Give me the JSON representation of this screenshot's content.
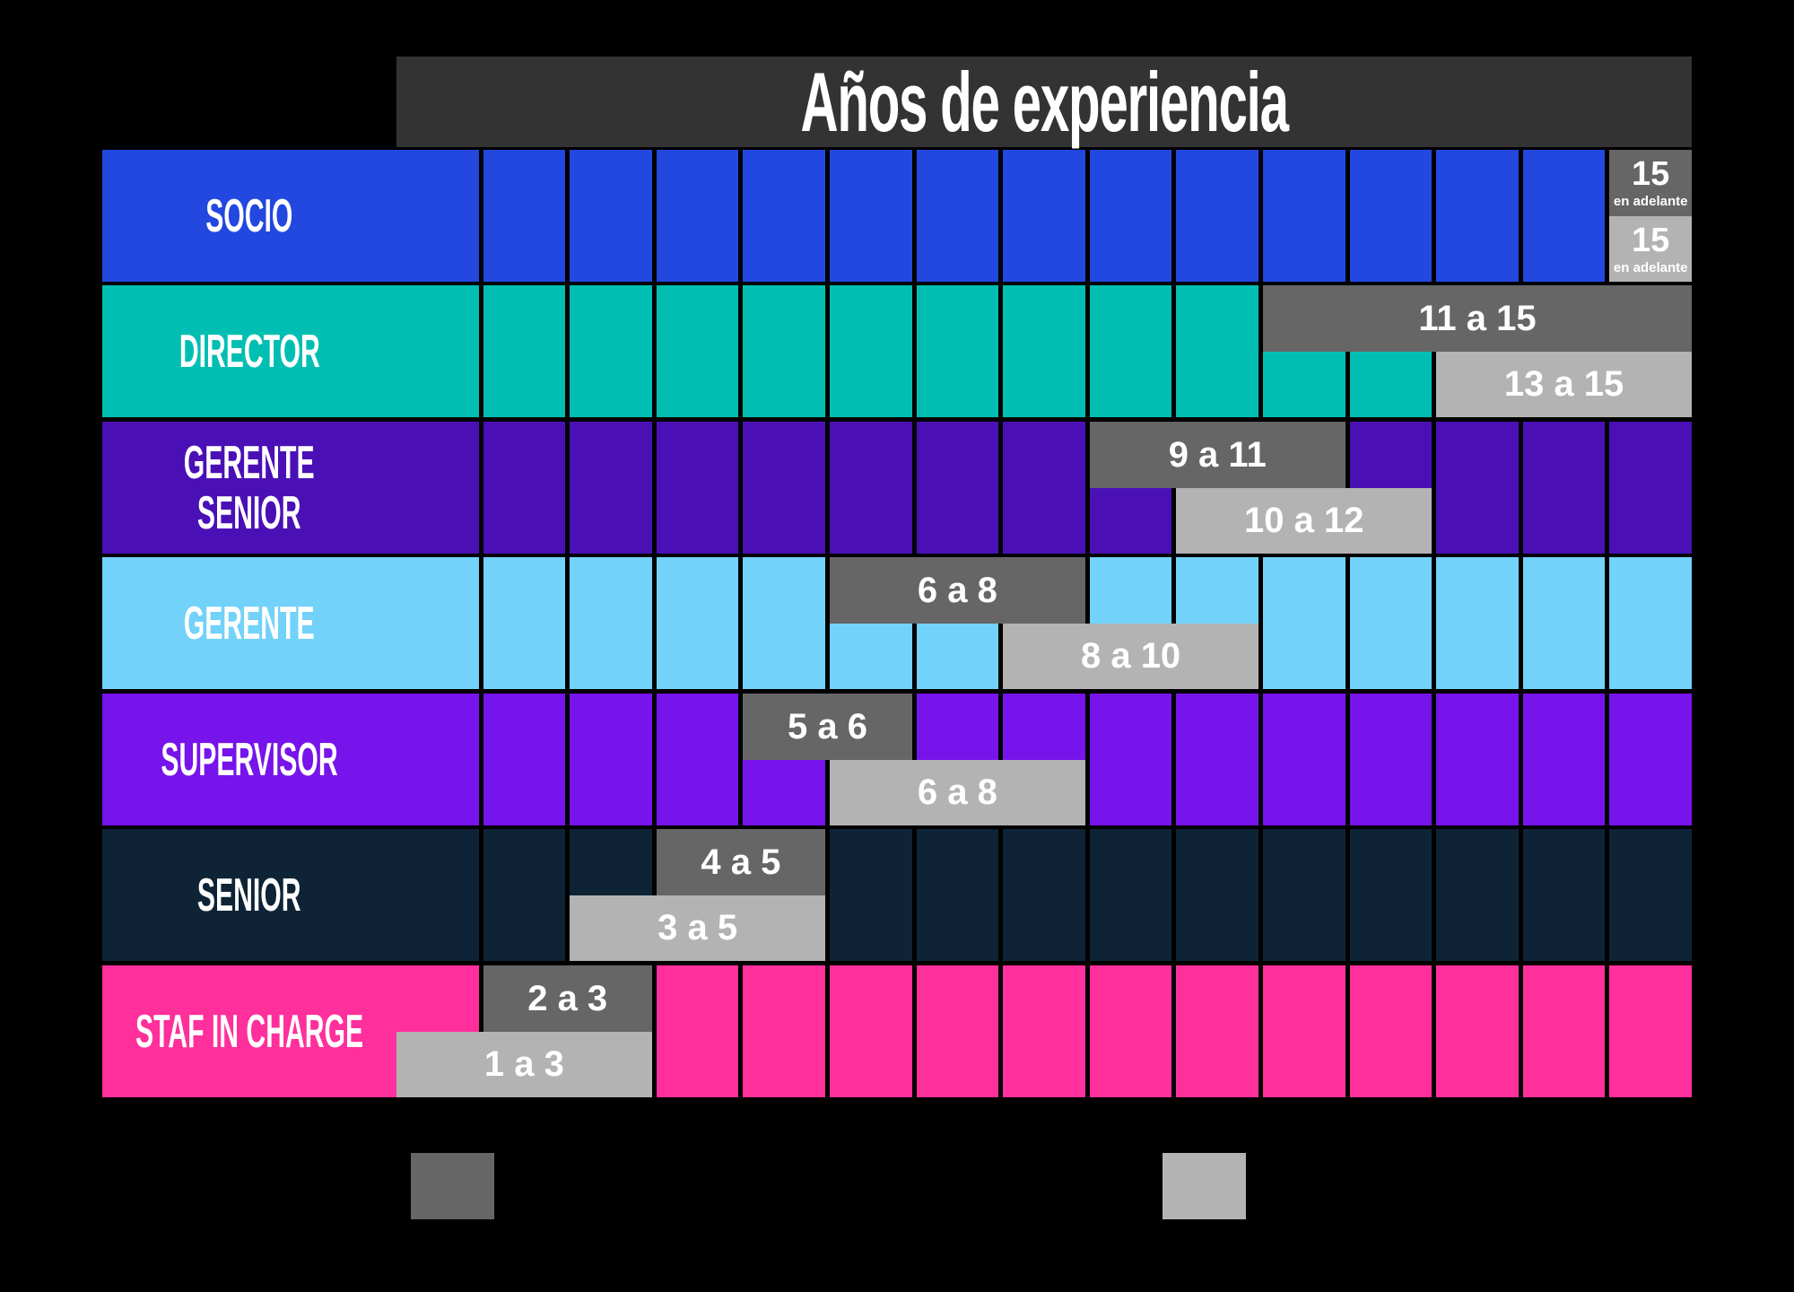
{
  "header": {
    "title": "Años de experiencia"
  },
  "colors": {
    "background": "#000000",
    "header_bar": "#333333",
    "range_dark": "#666666",
    "range_light": "#B3B3B3",
    "text": "#ffffff"
  },
  "legend": {
    "dark_swatch_color": "#666666",
    "light_swatch_color": "#B3B3B3"
  },
  "chart_data": {
    "type": "gantt-range",
    "title": "Años de experiencia",
    "x_axis": {
      "unit": "años",
      "min": 1,
      "max": 15,
      "gridlines": true
    },
    "legend": [
      {
        "id": "dark-range",
        "color": "#666666"
      },
      {
        "id": "light-range",
        "color": "#B3B3B3"
      }
    ],
    "rows": [
      {
        "role": "SOCIO",
        "role_lines": [
          "SOCIO"
        ],
        "color": "#2248E0",
        "dark_range": {
          "start": 15,
          "end": 15,
          "label": "15",
          "sublabel": "en adelante"
        },
        "light_range": {
          "start": 15,
          "end": 15,
          "label": "15",
          "sublabel": "en adelante"
        }
      },
      {
        "role": "DIRECTOR",
        "role_lines": [
          "DIRECTOR"
        ],
        "color": "#00BFB2",
        "dark_range": {
          "start": 11,
          "end": 15,
          "label": "11 a 15"
        },
        "light_range": {
          "start": 13,
          "end": 15,
          "label": "13 a 15"
        }
      },
      {
        "role": "GERENTE SENIOR",
        "role_lines": [
          "GERENTE",
          "SENIOR"
        ],
        "color": "#4A10B6",
        "dark_range": {
          "start": 9,
          "end": 11,
          "label": "9 a 11"
        },
        "light_range": {
          "start": 10,
          "end": 12,
          "label": "10 a 12"
        }
      },
      {
        "role": "GERENTE",
        "role_lines": [
          "GERENTE"
        ],
        "color": "#72D2F9",
        "dark_range": {
          "start": 6,
          "end": 8,
          "label": "6 a 8"
        },
        "light_range": {
          "start": 8,
          "end": 10,
          "label": "8 a 10"
        }
      },
      {
        "role": "SUPERVISOR",
        "role_lines": [
          "SUPERVISOR"
        ],
        "color": "#7713EB",
        "dark_range": {
          "start": 5,
          "end": 6,
          "label": "5 a 6"
        },
        "light_range": {
          "start": 6,
          "end": 8,
          "label": "6 a 8"
        }
      },
      {
        "role": "SENIOR",
        "role_lines": [
          "SENIOR"
        ],
        "color": "#0E2336",
        "dark_range": {
          "start": 4,
          "end": 5,
          "label": "4 a 5"
        },
        "light_range": {
          "start": 3,
          "end": 5,
          "label": "3 a 5"
        }
      },
      {
        "role": "STAF IN CHARGE",
        "role_lines": [
          "STAF IN CHARGE"
        ],
        "color": "#FF2F9C",
        "dark_range": {
          "start": 2,
          "end": 3,
          "label": "2 a 3"
        },
        "light_range": {
          "start": 1,
          "end": 3,
          "label": "1 a 3"
        }
      }
    ]
  }
}
